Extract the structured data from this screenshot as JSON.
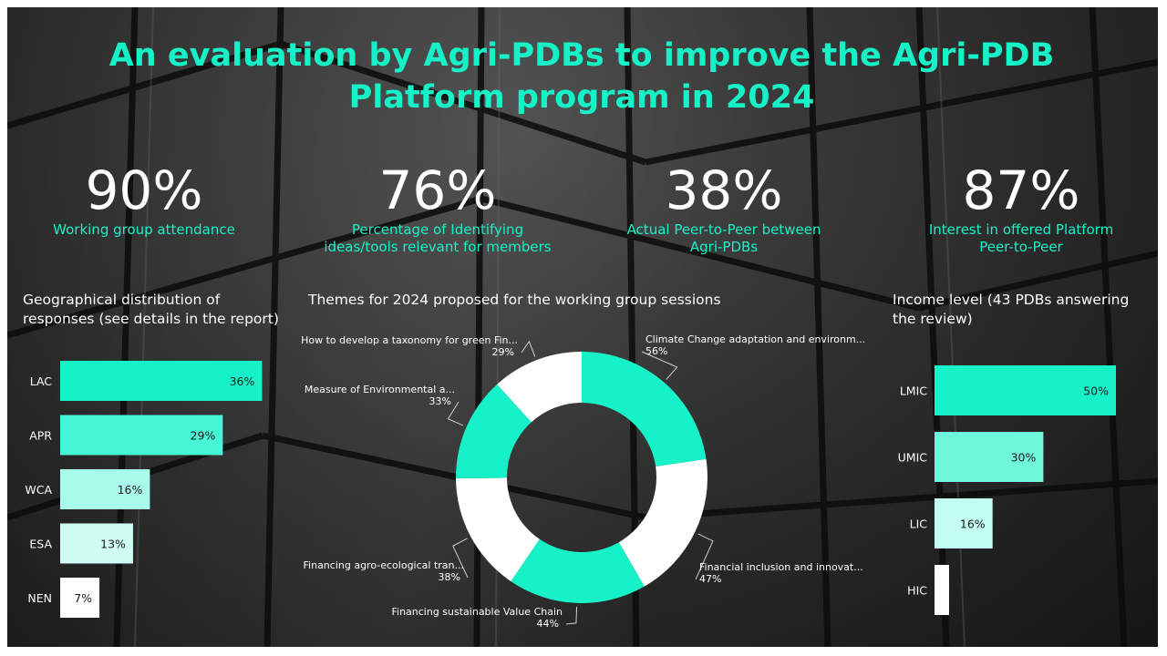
{
  "title": "An evaluation by Agri-PDBs to improve the Agri-PDB Platform program in 2024",
  "kpis": [
    {
      "value": "90%",
      "label_lines": [
        "Working group attendance"
      ]
    },
    {
      "value": "76%",
      "label_lines": [
        "Percentage of Identifying",
        "ideas/tools relevant for members"
      ]
    },
    {
      "value": "38%",
      "label_lines": [
        "Actual Peer-to-Peer between",
        "Agri-PDBs"
      ]
    },
    {
      "value": "87%",
      "label_lines": [
        "Interest in offered Platform",
        "Peer-to-Peer"
      ]
    }
  ],
  "colors": {
    "accent": "#16f2c8",
    "white": "#ffffff"
  },
  "chart_data": [
    {
      "type": "bar",
      "orientation": "horizontal",
      "title": "Geographical distribution of responses (see details in the report)",
      "title_lines": [
        "Geographical distribution of",
        "responses (see details in the report)"
      ],
      "categories": [
        "LAC",
        "APR",
        "WCA",
        "ESA",
        "NEN"
      ],
      "values": [
        36,
        29,
        16,
        13,
        7
      ],
      "value_labels": [
        "36%",
        "29%",
        "16%",
        "13%",
        "7%"
      ],
      "colors": [
        "#16f2c8",
        "#45f5d4",
        "#a8fbeb",
        "#cffdf3",
        "#ffffff"
      ],
      "xlim": [
        0,
        40
      ],
      "grid": false
    },
    {
      "type": "pie",
      "variant": "donut",
      "title": "Themes for 2024 proposed for the working group sessions",
      "categories": [
        "Climate Change adaptation and environm...",
        "Financial inclusion and innovat...",
        "Financing sustainable Value Chain",
        "Financing agro-ecological tran...",
        "Measure of Environmental a...",
        "How to develop a taxonomy for green Fin..."
      ],
      "values": [
        56,
        47,
        44,
        38,
        33,
        29
      ],
      "value_labels": [
        "56%",
        "47%",
        "44%",
        "38%",
        "33%",
        "29%"
      ],
      "colors": [
        "#16f2c8",
        "#ffffff",
        "#16f2c8",
        "#ffffff",
        "#16f2c8",
        "#ffffff"
      ]
    },
    {
      "type": "bar",
      "orientation": "horizontal",
      "title": "Income level (43 PDBs answering the review)",
      "title_lines": [
        "Income level (43 PDBs answering",
        "the review)"
      ],
      "categories": [
        "LMIC",
        "UMIC",
        "LIC",
        "HIC"
      ],
      "values": [
        50,
        30,
        16,
        4
      ],
      "value_labels": [
        "50%",
        "30%",
        "16%",
        ""
      ],
      "colors": [
        "#16f2c8",
        "#6ff7dc",
        "#c3fcf0",
        "#ffffff"
      ],
      "xlim": [
        0,
        50
      ],
      "grid": false
    }
  ]
}
